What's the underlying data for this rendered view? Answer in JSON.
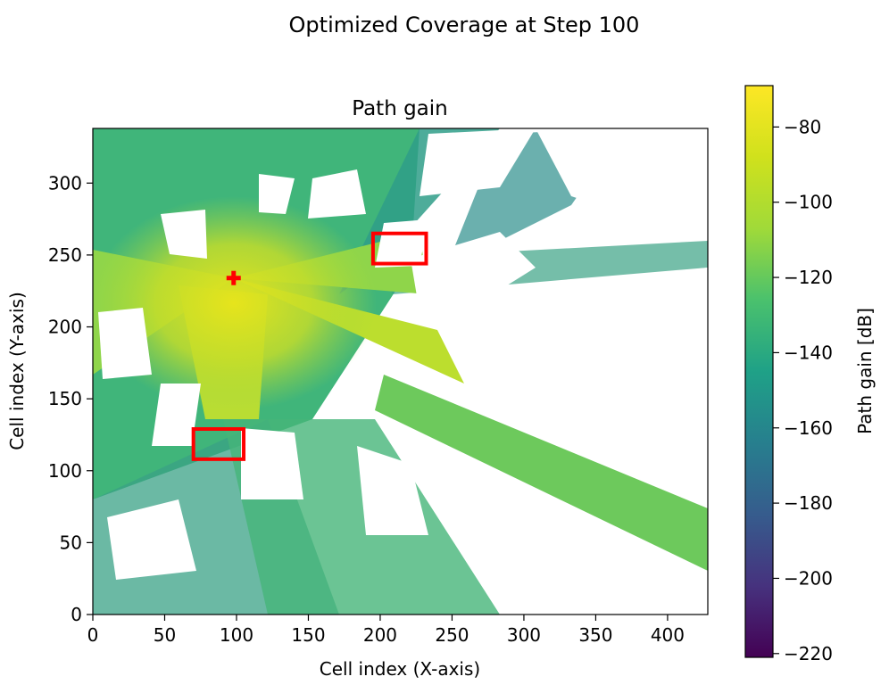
{
  "figure": {
    "suptitle": "Optimized Coverage at Step 100"
  },
  "chart_data": {
    "type": "heatmap",
    "title": "Path gain",
    "xlabel": "Cell index (X-axis)",
    "ylabel": "Cell index (Y-axis)",
    "xlim": [
      0,
      428
    ],
    "ylim": [
      0,
      338
    ],
    "xticks": [
      0,
      50,
      100,
      150,
      200,
      250,
      300,
      350,
      400
    ],
    "yticks": [
      0,
      50,
      100,
      150,
      200,
      250,
      300
    ],
    "grid": false,
    "colormap": "viridis",
    "colorbar": {
      "label": "Path gain [dB]",
      "range": [
        -221,
        -69
      ],
      "ticks": [
        -80,
        -100,
        -120,
        -140,
        -160,
        -180,
        -200,
        -220
      ],
      "tick_labels": [
        "−80",
        "−100",
        "−120",
        "−140",
        "−160",
        "−180",
        "−200",
        "−220"
      ]
    },
    "transmitter": {
      "x": 98,
      "y": 234,
      "marker": "plus",
      "color": "#ff0000"
    },
    "regions": [
      {
        "x0": 195,
        "x1": 232,
        "y0": 244,
        "y1": 265,
        "color": "#ff0000"
      },
      {
        "x0": 70,
        "x1": 105,
        "y0": 108,
        "y1": 129,
        "color": "#ff0000"
      }
    ],
    "description_values": {
      "near_tx_db": -75,
      "street_db": -100,
      "far_db": -130
    }
  }
}
